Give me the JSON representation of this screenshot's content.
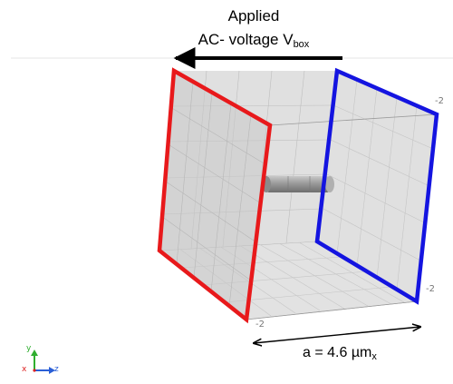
{
  "annotations": {
    "applied": "Applied",
    "ac_voltage": "AC- voltage V",
    "ac_voltage_subscript": "box",
    "dimension": "a = 4.6 µm",
    "dimension_subscript": "x"
  },
  "ticks": {
    "top_right": "-2",
    "bottom_right": "-2",
    "bottom_front": "-2"
  },
  "triad": {
    "x": "x",
    "y": "y",
    "z": "z"
  },
  "colors": {
    "electrode_left": "#e8191b",
    "electrode_right": "#1414e0",
    "axis_x": "#dd2222",
    "axis_y": "#2fae2f",
    "axis_z": "#2a5fd6"
  }
}
